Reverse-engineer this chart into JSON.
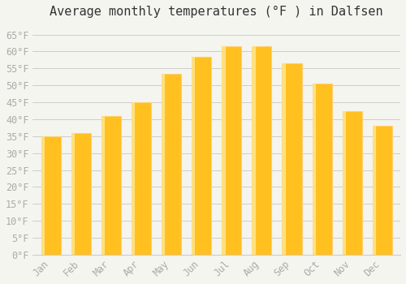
{
  "title": "Average monthly temperatures (°F ) in Dalfsen",
  "months": [
    "Jan",
    "Feb",
    "Mar",
    "Apr",
    "May",
    "Jun",
    "Jul",
    "Aug",
    "Sep",
    "Oct",
    "Nov",
    "Dec"
  ],
  "values": [
    35.0,
    36.0,
    41.0,
    45.0,
    53.5,
    58.5,
    61.5,
    61.5,
    56.5,
    50.5,
    42.5,
    38.0
  ],
  "bar_color_face": "#FFC020",
  "bar_color_edge": "#FFD070",
  "ylim": [
    0,
    68
  ],
  "yticks": [
    0,
    5,
    10,
    15,
    20,
    25,
    30,
    35,
    40,
    45,
    50,
    55,
    60,
    65
  ],
  "ytick_labels": [
    "0°F",
    "5°F",
    "10°F",
    "15°F",
    "20°F",
    "25°F",
    "30°F",
    "35°F",
    "40°F",
    "45°F",
    "50°F",
    "55°F",
    "60°F",
    "65°F"
  ],
  "grid_color": "#cccccc",
  "background_color": "#f5f5f0",
  "title_fontsize": 11,
  "tick_fontsize": 8.5,
  "tick_font_color": "#aaaaaa"
}
